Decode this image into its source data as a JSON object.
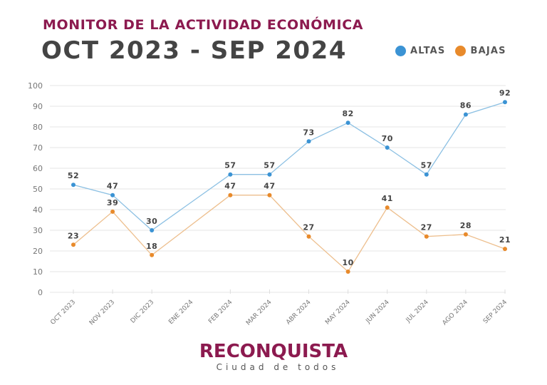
{
  "header": {
    "subtitle": "MONITOR DE LA ACTIVIDAD ECONÓMICA",
    "title": "OCT 2023 - SEP 2024"
  },
  "legend": [
    {
      "label": "ALTAS",
      "color": "#3b93d4"
    },
    {
      "label": "BAJAS",
      "color": "#e88a2b"
    }
  ],
  "logo": {
    "name": "RECONQUISTA",
    "tagline": "Ciudad de todos"
  },
  "chart_data": {
    "type": "line",
    "title": "MONITOR DE LA ACTIVIDAD ECONÓMICA — OCT 2023 - SEP 2024",
    "xlabel": "",
    "ylabel": "",
    "ylim": [
      0,
      100
    ],
    "yticks": [
      0,
      10,
      20,
      30,
      40,
      50,
      60,
      70,
      80,
      90,
      100
    ],
    "grid": true,
    "legend_position": "top-right",
    "categories": [
      "OCT 2023",
      "NOV 2023",
      "DIC 2023",
      "ENE 2024",
      "FEB 2024",
      "MAR 2024",
      "ABR 2024",
      "MAY 2024",
      "JUN 2024",
      "JUL 2024",
      "AGO 2024",
      "SEP 2024"
    ],
    "series": [
      {
        "name": "ALTAS",
        "color": "#3b93d4",
        "line_color": "#8cc0e3",
        "values": [
          52,
          47,
          30,
          null,
          57,
          57,
          73,
          82,
          70,
          57,
          86,
          92
        ]
      },
      {
        "name": "BAJAS",
        "color": "#e88a2b",
        "line_color": "#edbf8e",
        "values": [
          23,
          39,
          18,
          null,
          47,
          47,
          27,
          10,
          41,
          27,
          28,
          21
        ]
      }
    ]
  }
}
